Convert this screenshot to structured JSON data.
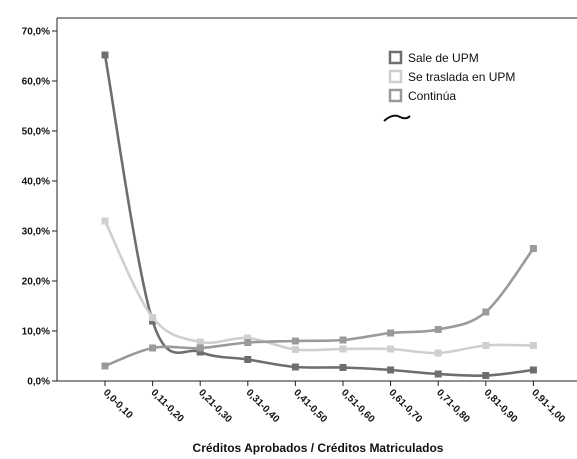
{
  "chart_data": {
    "type": "line",
    "title": "",
    "xlabel": "Créditos Aprobados / Créditos Matriculados",
    "ylabel": "",
    "ylim": [
      0,
      0.7
    ],
    "yticks": [
      "0,0%",
      "10,0%",
      "20,0%",
      "30,0%",
      "40,0%",
      "50,0%",
      "60,0%",
      "70,0%"
    ],
    "grid": false,
    "legend_position": "top-right",
    "categories": [
      "0,0-0,10",
      "0,11-0,20",
      "0,21-0,30",
      "0,31-0,40",
      "0,41-0,50",
      "0,51-0,60",
      "0,61-0,70",
      "0,71-0,80",
      "0,81-0,90",
      "0,91-1,00"
    ],
    "series": [
      {
        "name": "Sale de UPM",
        "color": "#6e6e6e",
        "values": [
          0.652,
          0.12,
          0.058,
          0.043,
          0.028,
          0.027,
          0.022,
          0.014,
          0.011,
          0.022
        ]
      },
      {
        "name": "Se traslada en UPM",
        "color": "#cfcfcf",
        "values": [
          0.32,
          0.127,
          0.078,
          0.086,
          0.063,
          0.064,
          0.064,
          0.056,
          0.071,
          0.071
        ]
      },
      {
        "name": "Continúa",
        "color": "#9a9a9a",
        "values": [
          0.03,
          0.066,
          0.066,
          0.077,
          0.08,
          0.082,
          0.096,
          0.103,
          0.138,
          0.265
        ]
      }
    ]
  }
}
